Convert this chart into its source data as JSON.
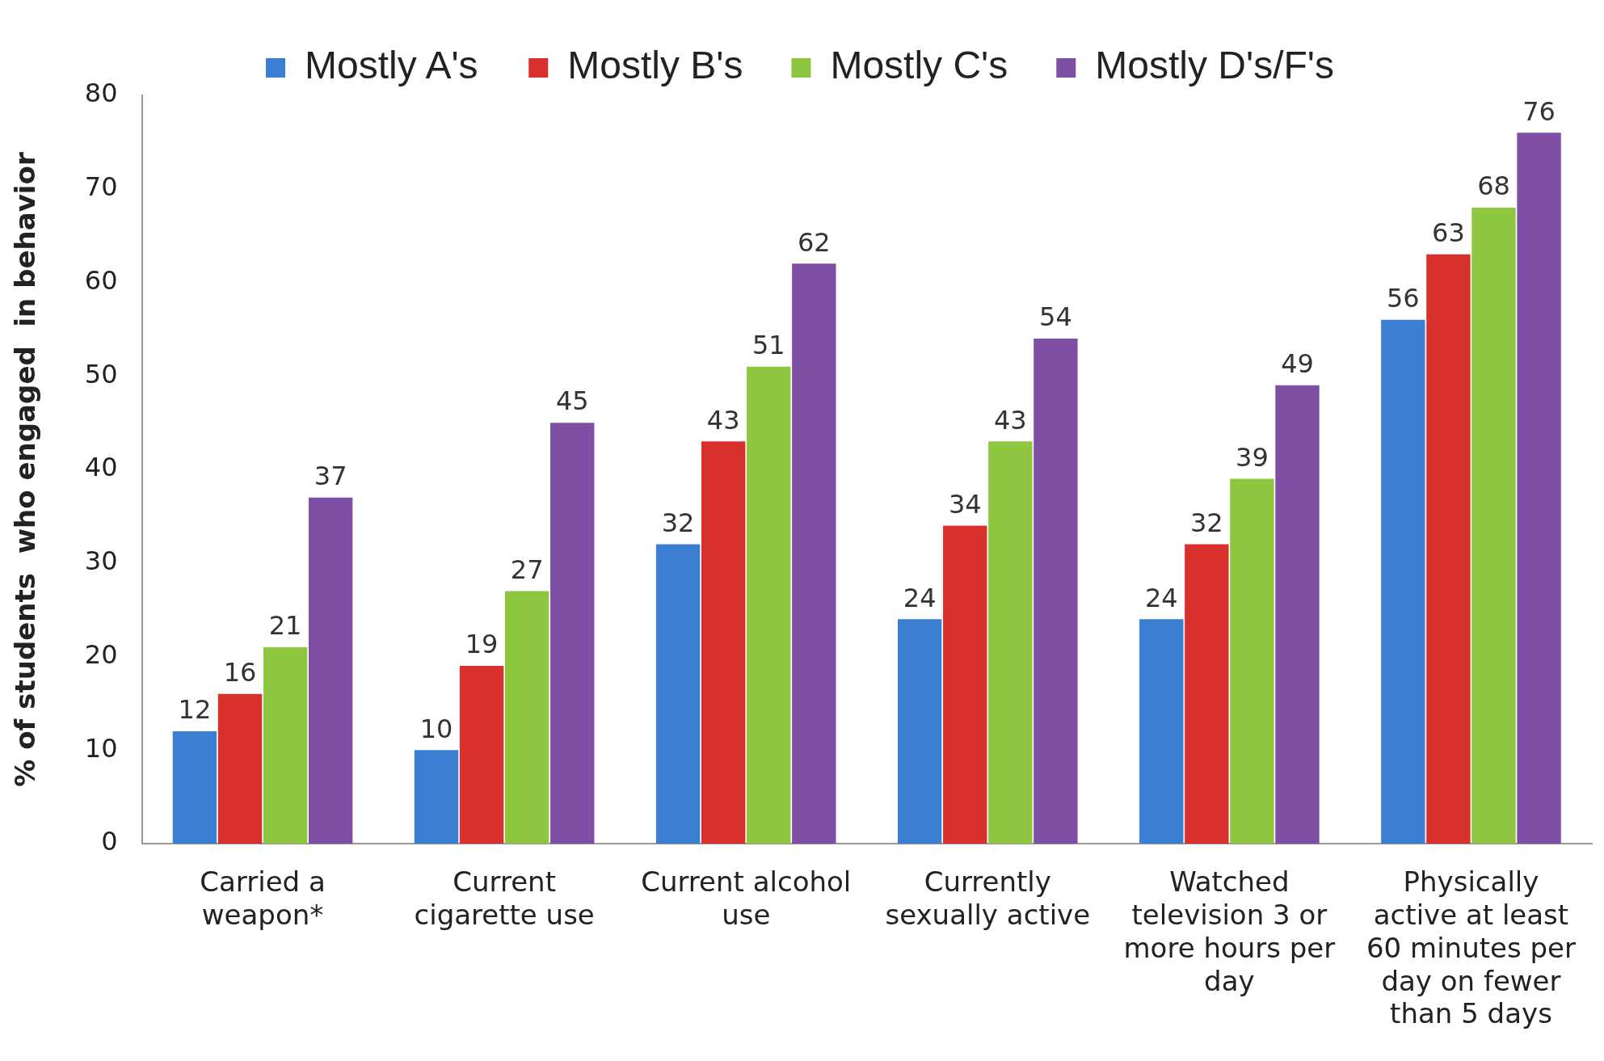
{
  "chart_data": {
    "type": "bar",
    "ylabel": "% of students  who engaged  in behavior",
    "categories": [
      "Carried a weapon*",
      "Current cigarette use",
      "Current alcohol use",
      "Currently sexually active",
      "Watched television 3 or more hours per day",
      "Physically active at least 60 minutes per day on fewer than 5 days"
    ],
    "series": [
      {
        "name": "Mostly A's",
        "color": "#3a7fd4",
        "values": [
          12,
          10,
          32,
          24,
          24,
          56
        ]
      },
      {
        "name": "Mostly B's",
        "color": "#d8302c",
        "values": [
          16,
          19,
          43,
          34,
          32,
          63
        ]
      },
      {
        "name": "Mostly C's",
        "color": "#8fc640",
        "values": [
          21,
          27,
          51,
          43,
          39,
          68
        ]
      },
      {
        "name": "Mostly D's/F's",
        "color": "#7f4ea5",
        "values": [
          37,
          45,
          62,
          54,
          49,
          76
        ]
      }
    ],
    "ylim": [
      0,
      80
    ],
    "yticks": [
      0,
      10,
      20,
      30,
      40,
      50,
      60,
      70,
      80
    ],
    "grid": false,
    "legend": "top",
    "data_labels": true
  }
}
